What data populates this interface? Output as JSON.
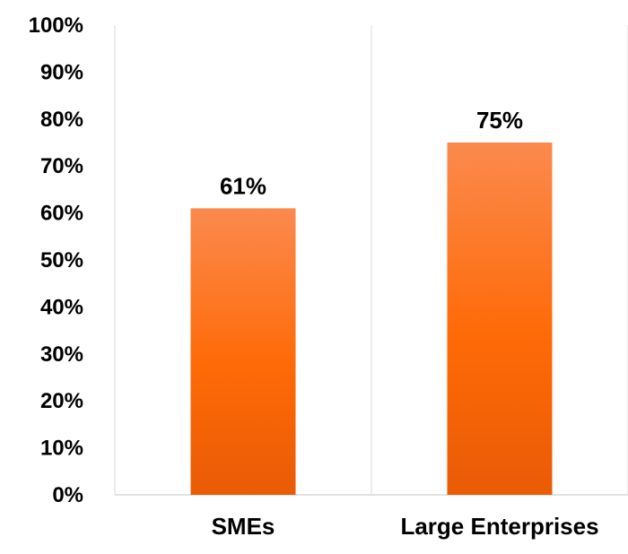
{
  "chart_data": {
    "type": "bar",
    "categories": [
      "SMEs",
      "Large Enterprises"
    ],
    "values": [
      61,
      75
    ],
    "data_labels": [
      "61%",
      "75%"
    ],
    "y_ticks": [
      "0%",
      "10%",
      "20%",
      "30%",
      "40%",
      "50%",
      "60%",
      "70%",
      "80%",
      "90%",
      "100%"
    ],
    "ylim": [
      0,
      100
    ],
    "title": "",
    "xlabel": "",
    "ylabel": "",
    "grid": "vertical category separators",
    "legend": "none",
    "colors": {
      "bar_top": "#fb8a4e",
      "bar_mid": "#fe6a07",
      "bar_bottom": "#e95b06",
      "grid": "#d9d9d9",
      "axis": "#d9d9d9"
    }
  }
}
